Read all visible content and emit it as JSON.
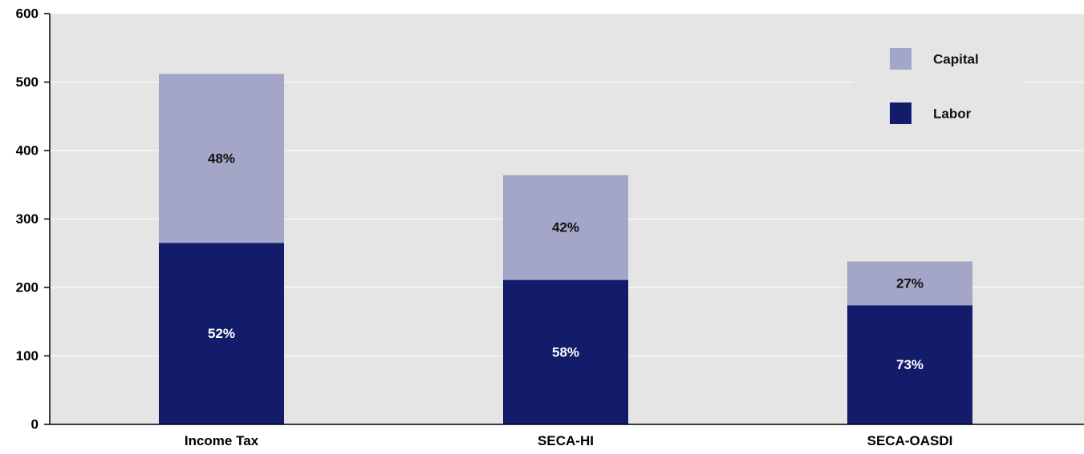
{
  "chart_data": {
    "type": "bar",
    "stacked": true,
    "categories": [
      "Income Tax",
      "SECA-HI",
      "SECA-OASDI"
    ],
    "series": [
      {
        "name": "Labor",
        "values": [
          265,
          211,
          174
        ],
        "labels": [
          "52%",
          "58%",
          "73%"
        ],
        "color": "#131c6b",
        "label_color": "#ffffff"
      },
      {
        "name": "Capital",
        "values": [
          247,
          153,
          64
        ],
        "labels": [
          "48%",
          "42%",
          "27%"
        ],
        "color": "#a3a6c6",
        "label_color": "#111111"
      }
    ],
    "ylim": [
      0,
      600
    ],
    "yticks": [
      "0",
      "100",
      "200",
      "300",
      "400",
      "500",
      "600"
    ],
    "ytick_values": [
      0,
      100,
      200,
      300,
      400,
      500,
      600
    ],
    "grid": true,
    "legend_position": "top-right",
    "legend_order": [
      "Capital",
      "Labor"
    ],
    "title": "",
    "xlabel": "",
    "ylabel": "",
    "plot_background": "#e5e5e5",
    "grid_color": "#ffffff"
  }
}
